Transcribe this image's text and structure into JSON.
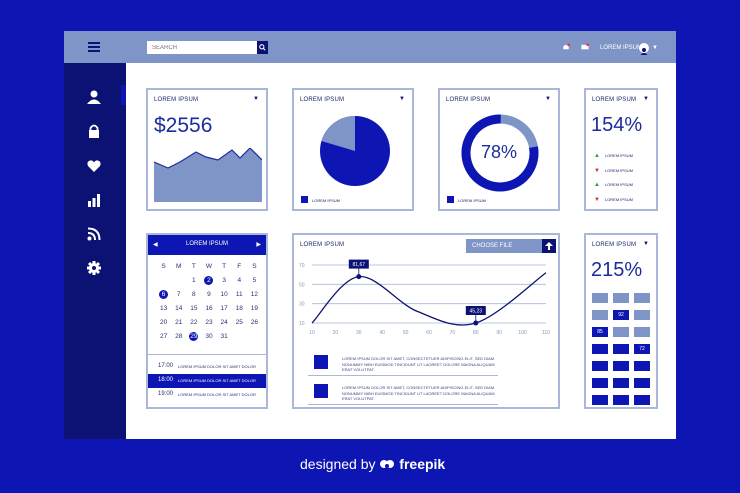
{
  "topbar": {
    "search_placeholder": "SEARCH",
    "user_label": "LOREM IPSUM",
    "caret": "▼"
  },
  "sidebar": {
    "items": [
      "user-icon",
      "lock-icon",
      "heart-icon",
      "bar-chart-icon",
      "rss-icon",
      "gear-icon"
    ]
  },
  "cards": {
    "revenue": {
      "title": "LOREM IPSUM",
      "value": "$2556",
      "caret": "▼"
    },
    "pie": {
      "title": "LOREM IPSUM",
      "legend": "LOREM IPSUM",
      "caret": "▼"
    },
    "donut": {
      "title": "LOREM IPSUM",
      "value": "78%",
      "legend": "LOREM IPSUM",
      "caret": "▼"
    },
    "percent154": {
      "title": "LOREM IPSUM",
      "value": "154%",
      "caret": "▼",
      "items": [
        {
          "arrow": "▲",
          "label": "LOREM IPSUM",
          "color": "#2e9a3a"
        },
        {
          "arrow": "▼",
          "label": "LOREM IPSUM",
          "color": "#d22b2b"
        },
        {
          "arrow": "▲",
          "label": "LOREM IPSUM",
          "color": "#2e9a3a"
        },
        {
          "arrow": "▼",
          "label": "LOREM IPSUM",
          "color": "#d22b2b"
        }
      ]
    },
    "calendar": {
      "title": "LOREM IPSUM",
      "prev": "◀",
      "next": "▶",
      "weekdays": [
        "S",
        "M",
        "T",
        "W",
        "T",
        "F",
        "S"
      ],
      "days": [
        "",
        "",
        "1",
        "2",
        "3",
        "4",
        "5",
        "6",
        "7",
        "8",
        "9",
        "10",
        "11",
        "12",
        "13",
        "14",
        "15",
        "16",
        "17",
        "18",
        "19",
        "20",
        "21",
        "22",
        "23",
        "24",
        "25",
        "26",
        "27",
        "28",
        "29",
        "30",
        "31",
        "",
        ""
      ],
      "selected": [
        "2",
        "6",
        "29"
      ],
      "schedule": [
        {
          "time": "17:00",
          "desc": "LOREM IPSUM DOLOR SIT AMET DOLOR",
          "active": false
        },
        {
          "time": "18:00",
          "desc": "LOREM IPSUM DOLOR SIT AMET DOLOR",
          "active": true
        },
        {
          "time": "19:00",
          "desc": "LOREM IPSUM DOLOR SIT AMET DOLOR",
          "active": false
        }
      ]
    },
    "linechart": {
      "title": "LOREM IPSUM",
      "choose_file": "CHOOSE FILE",
      "notes": [
        "LOREM IPSUM DOLOR SIT AMET, CONSECTETUER ADIPISCING ELIT, SED DIAM NONUMMY NIBH EUISMOD TINCIDUNT UT LAOREET DOLORE MAGNA ALIQUAM ERAT VOLUTPAT.",
        "LOREM IPSUM DOLOR SIT AMET, CONSECTETUER ADIPISCING ELIT, SED DIAM NONUMMY NIBH EUISMOD TINCIDUNT UT LAOREET DOLORE MAGNA ALIQUAM ERAT VOLUTPAT."
      ]
    },
    "percent215": {
      "title": "LOREM IPSUM",
      "value": "215%",
      "caret": "▼",
      "grid": [
        [
          "",
          "",
          ""
        ],
        [
          "",
          "92",
          ""
        ],
        [
          "85",
          "",
          ""
        ],
        [
          "",
          "",
          "72"
        ],
        [
          "",
          "",
          ""
        ],
        [
          "",
          "",
          ""
        ],
        [
          "",
          "",
          ""
        ]
      ]
    }
  },
  "chart_data": {
    "type": "line",
    "x_ticks": [
      "10",
      "20",
      "30",
      "40",
      "50",
      "60",
      "70",
      "80",
      "90",
      "100",
      "110"
    ],
    "y_ticks": [
      "10",
      "30",
      "50",
      "70"
    ],
    "xlim": [
      10,
      110
    ],
    "ylim": [
      10,
      70
    ],
    "points": [
      {
        "x": 10,
        "y": 10
      },
      {
        "x": 30,
        "y": 58
      },
      {
        "x": 55,
        "y": 22
      },
      {
        "x": 80,
        "y": 10
      },
      {
        "x": 110,
        "y": 62
      }
    ],
    "annotations": [
      {
        "x": 30,
        "y": 58,
        "label": "81,67"
      },
      {
        "x": 80,
        "y": 10,
        "label": "45,23"
      }
    ]
  },
  "credit": {
    "prefix": "designed by",
    "brand": "freepik"
  },
  "colors": {
    "primary": "#0d16b3",
    "dark": "#0b1273",
    "muted": "#7f95c7",
    "border": "#a9b8d8"
  }
}
